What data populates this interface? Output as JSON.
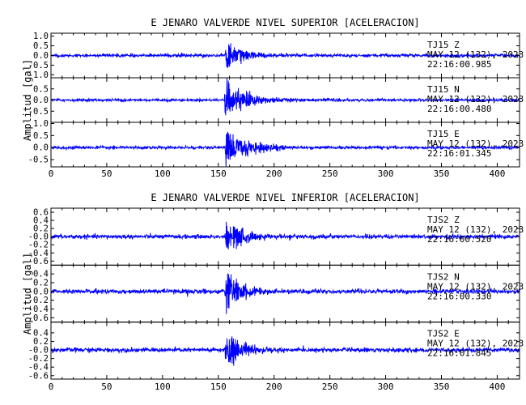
{
  "chart_data": [
    {
      "type": "line",
      "title": "E JENARO VALVERDE NIVEL SUPERIOR [ACELERACION]",
      "ylabel": "Amplitud [gal]",
      "xlim": [
        0,
        420
      ],
      "x_ticks": [
        "0",
        "50",
        "100",
        "150",
        "200",
        "250",
        "300",
        "350",
        "400"
      ],
      "line_color": "#0000ff",
      "traces": [
        {
          "station": "TJ15",
          "component": "Z",
          "date": "MAY 12 (132), 2023",
          "time": "22:16:00.985",
          "ylim": [
            -1.15,
            1.15
          ],
          "y_ticks": [
            "1.0",
            "0.5",
            "0.0",
            "-0.5",
            "-1.0"
          ],
          "y_tick_values": [
            1.0,
            0.5,
            0.0,
            -0.5,
            -1.0
          ],
          "onset": 156,
          "peak_amplitude": 1.1,
          "decay": 14,
          "coda_amplitude": 0.08,
          "noise": 0.04
        },
        {
          "station": "TJ15",
          "component": "N",
          "date": "MAY 12 (132), 2023",
          "time": "22:16:00.480",
          "ylim": [
            -1.0,
            1.0
          ],
          "y_ticks": [
            "0.5",
            "0.0",
            "-0.5"
          ],
          "y_tick_values": [
            0.5,
            0.0,
            -0.5
          ],
          "onset": 155,
          "peak_amplitude": 0.8,
          "decay": 18,
          "coda_amplitude": 0.25,
          "noise": 0.03
        },
        {
          "station": "TJ15",
          "component": "E",
          "date": "MAY 12 (132), 2023",
          "time": "22:16:01.345",
          "ylim": [
            -0.8,
            1.05
          ],
          "y_ticks": [
            "1.0",
            "0.5",
            "0.0",
            "-0.5"
          ],
          "y_tick_values": [
            1.0,
            0.5,
            0.0,
            -0.5
          ],
          "onset": 156,
          "peak_amplitude": 0.75,
          "decay": 20,
          "coda_amplitude": 0.18,
          "noise": 0.03
        }
      ]
    },
    {
      "type": "line",
      "title": "E JENARO VALVERDE NIVEL INFERIOR [ACELERACION]",
      "ylabel": "Amplitud [gal]",
      "xlim": [
        0,
        420
      ],
      "x_ticks": [
        "0",
        "50",
        "100",
        "150",
        "200",
        "250",
        "300",
        "350",
        "400"
      ],
      "line_color": "#0000ff",
      "traces": [
        {
          "station": "TJS2",
          "component": "Z",
          "date": "MAY 12 (132), 2023",
          "time": "22:16:00.520",
          "ylim": [
            -0.7,
            0.7
          ],
          "y_ticks": [
            "0.6",
            "0.4",
            "0.2",
            "-0.0",
            "-0.2",
            "-0.4",
            "-0.6"
          ],
          "y_tick_values": [
            0.6,
            0.4,
            0.2,
            0.0,
            -0.2,
            -0.4,
            -0.6
          ],
          "onset": 156,
          "peak_amplitude": 0.62,
          "decay": 14,
          "coda_amplitude": 0.06,
          "noise": 0.025
        },
        {
          "station": "TJS2",
          "component": "N",
          "date": "MAY 12 (132), 2023",
          "time": "22:16:00.330",
          "ylim": [
            -0.7,
            0.6
          ],
          "y_ticks": [
            "0.4",
            "0.2",
            "-0.0",
            "-0.2",
            "-0.4",
            "-0.6"
          ],
          "y_tick_values": [
            0.4,
            0.2,
            0.0,
            -0.2,
            -0.4,
            -0.6
          ],
          "onset": 156,
          "peak_amplitude": 0.58,
          "decay": 13,
          "coda_amplitude": 0.06,
          "noise": 0.025
        },
        {
          "station": "TJS2",
          "component": "E",
          "date": "MAY 12 (132), 2023",
          "time": "22:16:01.845",
          "ylim": [
            -0.68,
            0.65
          ],
          "y_ticks": [
            "0.4",
            "0.2",
            "-0.0",
            "-0.2",
            "-0.4",
            "-0.6"
          ],
          "y_tick_values": [
            0.4,
            0.2,
            0.0,
            -0.2,
            -0.4,
            -0.6
          ],
          "onset": 156,
          "peak_amplitude": 0.6,
          "decay": 12,
          "coda_amplitude": 0.06,
          "noise": 0.025
        }
      ]
    }
  ]
}
